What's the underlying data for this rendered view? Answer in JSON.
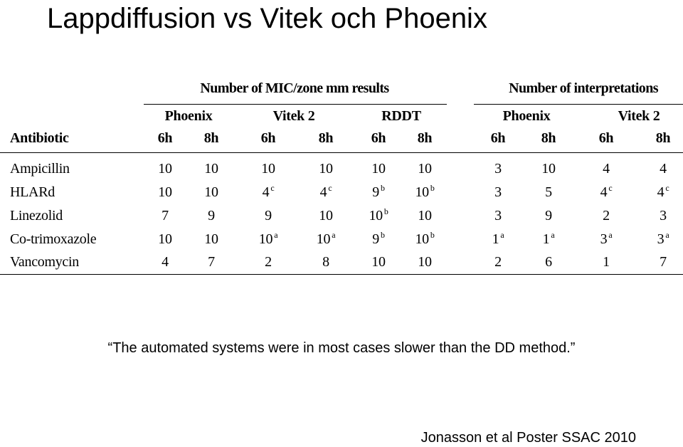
{
  "title": "Lappdiffusion vs Vitek och Phoenix",
  "table": {
    "group_headers": {
      "mic": "Number of MIC/zone mm results",
      "interp": "Number of interpretations"
    },
    "systems": [
      "Phoenix",
      "Vitek 2",
      "RDDT",
      "Phoenix",
      "Vitek 2"
    ],
    "antibiotic_header": "Antibiotic",
    "times": [
      "6h",
      "8h",
      "6h",
      "8h",
      "6h",
      "8h",
      "6h",
      "8h",
      "6h",
      "8h"
    ],
    "rows": [
      {
        "name": "Ampicillin",
        "cells": [
          {
            "v": "10",
            "s": ""
          },
          {
            "v": "10",
            "s": ""
          },
          {
            "v": "10",
            "s": ""
          },
          {
            "v": "10",
            "s": ""
          },
          {
            "v": "10",
            "s": ""
          },
          {
            "v": "10",
            "s": ""
          },
          {
            "v": "3",
            "s": ""
          },
          {
            "v": "10",
            "s": ""
          },
          {
            "v": "4",
            "s": ""
          },
          {
            "v": "4",
            "s": ""
          }
        ]
      },
      {
        "name": "HLARd",
        "cells": [
          {
            "v": "10",
            "s": ""
          },
          {
            "v": "10",
            "s": ""
          },
          {
            "v": "4",
            "s": "c"
          },
          {
            "v": "4",
            "s": "c"
          },
          {
            "v": "9",
            "s": "b"
          },
          {
            "v": "10",
            "s": "b"
          },
          {
            "v": "3",
            "s": ""
          },
          {
            "v": "5",
            "s": ""
          },
          {
            "v": "4",
            "s": "c"
          },
          {
            "v": "4",
            "s": "c"
          }
        ]
      },
      {
        "name": "Linezolid",
        "cells": [
          {
            "v": "7",
            "s": ""
          },
          {
            "v": "9",
            "s": ""
          },
          {
            "v": "9",
            "s": ""
          },
          {
            "v": "10",
            "s": ""
          },
          {
            "v": "10",
            "s": "b"
          },
          {
            "v": "10",
            "s": ""
          },
          {
            "v": "3",
            "s": ""
          },
          {
            "v": "9",
            "s": ""
          },
          {
            "v": "2",
            "s": ""
          },
          {
            "v": "3",
            "s": ""
          }
        ]
      },
      {
        "name": "Co-trimoxazole",
        "cells": [
          {
            "v": "10",
            "s": ""
          },
          {
            "v": "10",
            "s": ""
          },
          {
            "v": "10",
            "s": "a"
          },
          {
            "v": "10",
            "s": "a"
          },
          {
            "v": "9",
            "s": "b"
          },
          {
            "v": "10",
            "s": "b"
          },
          {
            "v": "1",
            "s": "a"
          },
          {
            "v": "1",
            "s": "a"
          },
          {
            "v": "3",
            "s": "a"
          },
          {
            "v": "3",
            "s": "a"
          }
        ]
      },
      {
        "name": "Vancomycin",
        "cells": [
          {
            "v": "4",
            "s": ""
          },
          {
            "v": "7",
            "s": ""
          },
          {
            "v": "2",
            "s": ""
          },
          {
            "v": "8",
            "s": ""
          },
          {
            "v": "10",
            "s": ""
          },
          {
            "v": "10",
            "s": ""
          },
          {
            "v": "2",
            "s": ""
          },
          {
            "v": "6",
            "s": ""
          },
          {
            "v": "1",
            "s": ""
          },
          {
            "v": "7",
            "s": ""
          }
        ]
      }
    ]
  },
  "quote": "“The automated systems were in most cases slower than the DD method.”",
  "citation": "Jonasson et al Poster SSAC 2010"
}
